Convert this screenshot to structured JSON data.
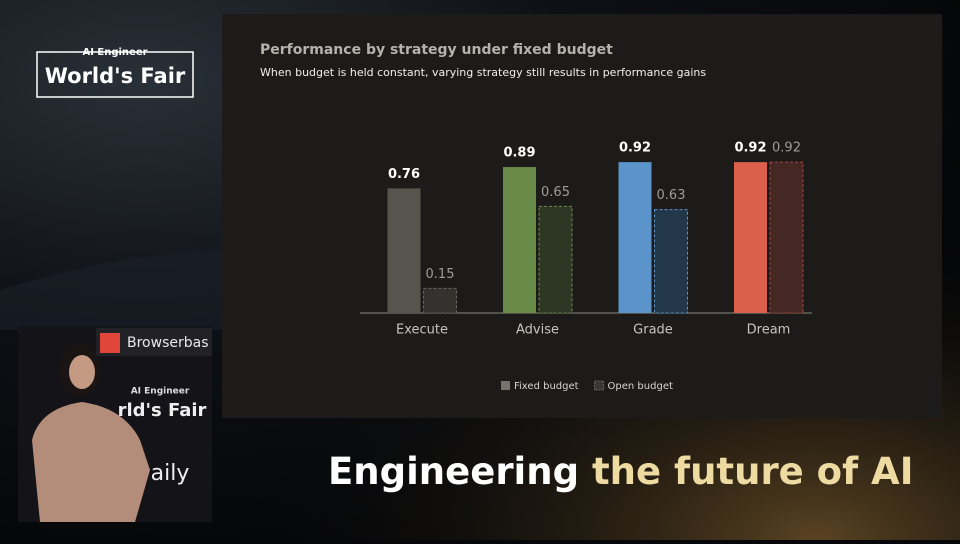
{
  "branding": {
    "kicker": "AI Engineer",
    "name": "World's Fair"
  },
  "caption": {
    "parts": [
      "Engineering",
      "the future of AI"
    ]
  },
  "video": {
    "signs": [
      "Browserbas",
      "AI Engineer",
      "rld's Fair",
      "aily"
    ]
  },
  "chart_data": {
    "type": "bar",
    "title": "Performance by strategy under fixed budget",
    "subtitle": "When budget is held constant, varying strategy still results in performance gains",
    "categories": [
      "Execute",
      "Advise",
      "Grade",
      "Dream"
    ],
    "series": [
      {
        "name": "Fixed budget",
        "color": "#77736c",
        "colors": [
          "#57544e",
          "#6a8a48",
          "#5b94cb",
          "#dc5f4b"
        ],
        "values": [
          0.76,
          0.89,
          0.92,
          0.92
        ]
      },
      {
        "name": "Open budget",
        "color": "#3a3834",
        "colors": [
          "#34322e",
          "#2c3824",
          "#22374a",
          "#452823"
        ],
        "border_colors": [
          "#6a665f",
          "#6a8a48",
          "#5b94cb",
          "#a04a3c"
        ],
        "dashed": true,
        "values": [
          0.15,
          0.65,
          0.63,
          0.92
        ]
      }
    ],
    "legend": "bottom"
  }
}
